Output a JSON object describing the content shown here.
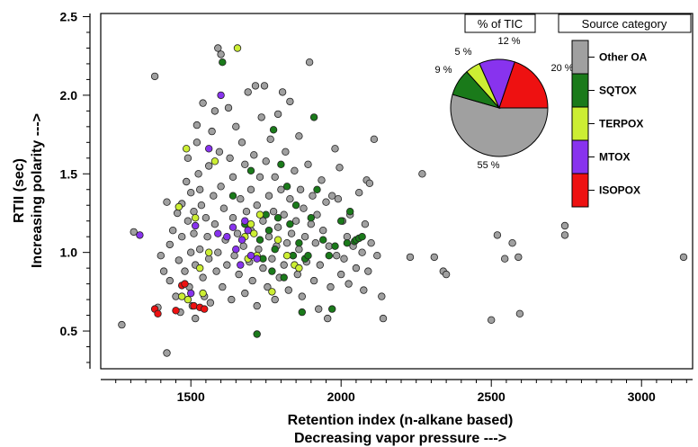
{
  "chart_data": {
    "type": "scatter",
    "xlabel": "Retention index (n-alkane based)",
    "xlabel2": "Decreasing vapor pressure --->",
    "ylabel": "RTII (sec)",
    "ylabel2": "Increasing polarity --->",
    "xlim": [
      1200,
      3170
    ],
    "ylim": [
      0.26,
      2.52
    ],
    "x_ticks": [
      1500,
      2000,
      2500,
      3000
    ],
    "y_ticks": [
      0.5,
      1.0,
      1.5,
      2.0,
      2.5
    ],
    "x_tick_labels": [
      "1500",
      "2000",
      "2500",
      "3000"
    ],
    "y_tick_labels": [
      "0.5",
      "1.0",
      "1.5",
      "2.0",
      "2.5"
    ],
    "grid": false,
    "colors": {
      "Other OA": "#a0a0a0",
      "SQTOX": "#1a7a1a",
      "TERPOX": "#ccee33",
      "MTOX": "#8833ee",
      "ISOPOX": "#ee1111"
    },
    "series": [
      {
        "name": "Other OA",
        "points": [
          [
            1270,
            0.54
          ],
          [
            1310,
            1.13
          ],
          [
            1380,
            2.12
          ],
          [
            1390,
            0.65
          ],
          [
            1400,
            0.98
          ],
          [
            1410,
            0.88
          ],
          [
            1420,
            1.32
          ],
          [
            1420,
            0.36
          ],
          [
            1430,
            1.05
          ],
          [
            1430,
            0.82
          ],
          [
            1440,
            1.14
          ],
          [
            1450,
            0.72
          ],
          [
            1455,
            1.25
          ],
          [
            1460,
            0.95
          ],
          [
            1465,
            0.62
          ],
          [
            1470,
            1.31
          ],
          [
            1470,
            1.1
          ],
          [
            1480,
            0.88
          ],
          [
            1485,
            1.45
          ],
          [
            1490,
            1.6
          ],
          [
            1490,
            1.2
          ],
          [
            1495,
            0.78
          ],
          [
            1500,
            1.0
          ],
          [
            1500,
            1.38
          ],
          [
            1505,
            0.66
          ],
          [
            1510,
            1.26
          ],
          [
            1510,
            1.12
          ],
          [
            1515,
            0.92
          ],
          [
            1515,
            0.58
          ],
          [
            1520,
            1.81
          ],
          [
            1520,
            1.7
          ],
          [
            1525,
            1.5
          ],
          [
            1530,
            1.4
          ],
          [
            1530,
            1.02
          ],
          [
            1535,
            1.3
          ],
          [
            1540,
            0.84
          ],
          [
            1540,
            1.95
          ],
          [
            1545,
            0.72
          ],
          [
            1550,
            1.22
          ],
          [
            1555,
            1.1
          ],
          [
            1560,
            1.55
          ],
          [
            1560,
            0.96
          ],
          [
            1565,
            0.68
          ],
          [
            1570,
            1.77
          ],
          [
            1575,
            1.36
          ],
          [
            1580,
            1.18
          ],
          [
            1580,
            1.9
          ],
          [
            1585,
            0.88
          ],
          [
            1590,
            2.3
          ],
          [
            1590,
            1.0
          ],
          [
            1595,
            1.64
          ],
          [
            1600,
            2.26
          ],
          [
            1600,
            1.42
          ],
          [
            1605,
            0.78
          ],
          [
            1610,
            1.28
          ],
          [
            1615,
            1.08
          ],
          [
            1620,
            0.92
          ],
          [
            1625,
            1.92
          ],
          [
            1630,
            1.6
          ],
          [
            1635,
            0.7
          ],
          [
            1640,
            1.22
          ],
          [
            1640,
            1.48
          ],
          [
            1645,
            0.98
          ],
          [
            1650,
            1.8
          ],
          [
            1655,
            1.12
          ],
          [
            1660,
            0.86
          ],
          [
            1665,
            1.34
          ],
          [
            1670,
            1.7
          ],
          [
            1675,
            1.04
          ],
          [
            1680,
            0.74
          ],
          [
            1680,
            1.56
          ],
          [
            1685,
            1.26
          ],
          [
            1690,
            2.02
          ],
          [
            1695,
            0.94
          ],
          [
            1700,
            1.4
          ],
          [
            1700,
            1.14
          ],
          [
            1705,
            0.82
          ],
          [
            1710,
            1.62
          ],
          [
            1715,
            2.06
          ],
          [
            1720,
            1.3
          ],
          [
            1720,
            0.66
          ],
          [
            1725,
            1.02
          ],
          [
            1730,
            1.48
          ],
          [
            1735,
            1.86
          ],
          [
            1740,
            0.9
          ],
          [
            1740,
            1.2
          ],
          [
            1745,
            2.06
          ],
          [
            1750,
            1.58
          ],
          [
            1755,
            0.78
          ],
          [
            1760,
            1.1
          ],
          [
            1760,
            1.36
          ],
          [
            1765,
            1.72
          ],
          [
            1770,
            0.96
          ],
          [
            1775,
            1.26
          ],
          [
            1780,
            0.7
          ],
          [
            1780,
            1.48
          ],
          [
            1785,
            1.04
          ],
          [
            1790,
            1.88
          ],
          [
            1790,
            1.16
          ],
          [
            1795,
            0.84
          ],
          [
            1800,
            1.4
          ],
          [
            1805,
            2.02
          ],
          [
            1810,
            0.92
          ],
          [
            1810,
            1.24
          ],
          [
            1815,
            1.64
          ],
          [
            1820,
            1.06
          ],
          [
            1825,
            0.76
          ],
          [
            1830,
            1.34
          ],
          [
            1830,
            1.96
          ],
          [
            1835,
            1.12
          ],
          [
            1840,
            0.98
          ],
          [
            1845,
            1.52
          ],
          [
            1850,
            1.2
          ],
          [
            1855,
            0.86
          ],
          [
            1860,
            1.74
          ],
          [
            1860,
            1.02
          ],
          [
            1865,
            1.4
          ],
          [
            1870,
            0.72
          ],
          [
            1875,
            1.28
          ],
          [
            1880,
            1.1
          ],
          [
            1885,
            0.94
          ],
          [
            1890,
            1.56
          ],
          [
            1895,
            2.21
          ],
          [
            1900,
            1.18
          ],
          [
            1905,
            1.36
          ],
          [
            1910,
            0.82
          ],
          [
            1915,
            1.06
          ],
          [
            1920,
            1.24
          ],
          [
            1925,
            0.64
          ],
          [
            1930,
            0.92
          ],
          [
            1935,
            1.46
          ],
          [
            1940,
            1.14
          ],
          [
            1950,
            1.32
          ],
          [
            1955,
            0.58
          ],
          [
            1960,
            1.04
          ],
          [
            1965,
            0.78
          ],
          [
            1970,
            1.36
          ],
          [
            1980,
            1.66
          ],
          [
            1985,
            0.98
          ],
          [
            1990,
            1.34
          ],
          [
            1995,
            1.54
          ],
          [
            2000,
            0.86
          ],
          [
            2005,
            1.2
          ],
          [
            2010,
            0.96
          ],
          [
            2020,
            1.1
          ],
          [
            2025,
            0.8
          ],
          [
            2030,
            1.24
          ],
          [
            2040,
            1.04
          ],
          [
            2050,
            0.9
          ],
          [
            2060,
            1.38
          ],
          [
            2070,
            1.0
          ],
          [
            2075,
            0.76
          ],
          [
            2080,
            1.18
          ],
          [
            2085,
            1.46
          ],
          [
            2090,
            0.88
          ],
          [
            2095,
            1.44
          ],
          [
            2100,
            1.06
          ],
          [
            2110,
            1.72
          ],
          [
            2120,
            0.98
          ],
          [
            2135,
            0.72
          ],
          [
            2140,
            0.58
          ],
          [
            2230,
            0.97
          ],
          [
            2270,
            1.5
          ],
          [
            2310,
            0.97
          ],
          [
            2340,
            0.88
          ],
          [
            2350,
            0.86
          ],
          [
            2500,
            0.57
          ],
          [
            2520,
            1.11
          ],
          [
            2545,
            0.96
          ],
          [
            2570,
            1.06
          ],
          [
            2590,
            0.97
          ],
          [
            2595,
            0.61
          ],
          [
            2745,
            1.17
          ],
          [
            2745,
            1.11
          ],
          [
            3140,
            0.97
          ]
        ]
      },
      {
        "name": "SQTOX",
        "points": [
          [
            1605,
            2.21
          ],
          [
            1640,
            1.36
          ],
          [
            1680,
            1.18
          ],
          [
            1700,
            1.52
          ],
          [
            1720,
            0.48
          ],
          [
            1730,
            1.08
          ],
          [
            1740,
            0.96
          ],
          [
            1750,
            1.24
          ],
          [
            1760,
            1.14
          ],
          [
            1770,
            0.88
          ],
          [
            1775,
            1.78
          ],
          [
            1780,
            1.02
          ],
          [
            1790,
            1.22
          ],
          [
            1800,
            1.56
          ],
          [
            1810,
            0.84
          ],
          [
            1820,
            1.42
          ],
          [
            1830,
            1.18
          ],
          [
            1840,
            0.98
          ],
          [
            1850,
            1.3
          ],
          [
            1860,
            1.06
          ],
          [
            1870,
            0.62
          ],
          [
            1880,
            0.96
          ],
          [
            1890,
            0.98
          ],
          [
            1900,
            1.22
          ],
          [
            1910,
            1.86
          ],
          [
            1920,
            1.4
          ],
          [
            1940,
            1.08
          ],
          [
            1960,
            0.98
          ],
          [
            1970,
            0.64
          ],
          [
            1980,
            1.04
          ],
          [
            2000,
            1.2
          ],
          [
            2020,
            1.06
          ],
          [
            2030,
            1.26
          ],
          [
            2045,
            1.07
          ],
          [
            2050,
            1.08
          ],
          [
            2060,
            1.09
          ],
          [
            2070,
            1.1
          ]
        ]
      },
      {
        "name": "TERPOX",
        "points": [
          [
            1460,
            1.29
          ],
          [
            1470,
            0.72
          ],
          [
            1485,
            1.66
          ],
          [
            1490,
            0.7
          ],
          [
            1515,
            1.22
          ],
          [
            1530,
            0.9
          ],
          [
            1540,
            0.74
          ],
          [
            1560,
            1.0
          ],
          [
            1580,
            1.58
          ],
          [
            1655,
            2.3
          ],
          [
            1680,
            1.1
          ],
          [
            1690,
            0.96
          ],
          [
            1700,
            1.18
          ],
          [
            1710,
            1.12
          ],
          [
            1720,
            0.98
          ],
          [
            1730,
            1.24
          ],
          [
            1770,
            0.75
          ],
          [
            1790,
            1.08
          ],
          [
            1820,
            0.98
          ],
          [
            1845,
            0.92
          ],
          [
            1860,
            0.9
          ]
        ]
      },
      {
        "name": "MTOX",
        "points": [
          [
            1330,
            1.11
          ],
          [
            1500,
            0.74
          ],
          [
            1515,
            1.17
          ],
          [
            1560,
            1.66
          ],
          [
            1590,
            1.12
          ],
          [
            1600,
            2.0
          ],
          [
            1620,
            1.1
          ],
          [
            1640,
            1.16
          ],
          [
            1650,
            1.02
          ],
          [
            1665,
            0.92
          ],
          [
            1670,
            1.08
          ],
          [
            1680,
            1.2
          ],
          [
            1690,
            1.14
          ],
          [
            1700,
            0.98
          ],
          [
            1720,
            0.96
          ]
        ]
      },
      {
        "name": "ISOPOX",
        "points": [
          [
            1380,
            0.64
          ],
          [
            1390,
            0.61
          ],
          [
            1450,
            0.63
          ],
          [
            1470,
            0.79
          ],
          [
            1480,
            0.8
          ],
          [
            1510,
            0.66
          ],
          [
            1530,
            0.65
          ],
          [
            1545,
            0.64
          ]
        ]
      }
    ],
    "inset_pie": {
      "title": "% of TIC",
      "slices": [
        {
          "name": "Other OA",
          "value": 55,
          "label": "55 %"
        },
        {
          "name": "SQTOX",
          "value": 9,
          "label": "9 %"
        },
        {
          "name": "TERPOX",
          "value": 5,
          "label": "5 %"
        },
        {
          "name": "MTOX",
          "value": 12,
          "label": "12 %"
        },
        {
          "name": "ISOPOX",
          "value": 20,
          "label": "20 %"
        }
      ]
    },
    "legend": {
      "title": "Source category",
      "placement": "top-right",
      "entries": [
        "Other OA",
        "SQTOX",
        "TERPOX",
        "MTOX",
        "ISOPOX"
      ]
    }
  }
}
